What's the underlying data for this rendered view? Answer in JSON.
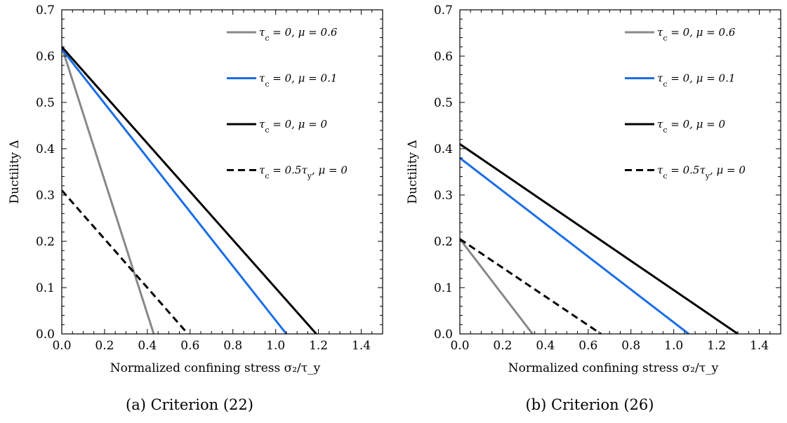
{
  "chart_data": [
    {
      "type": "line",
      "caption": "(a) Criterion (22)",
      "xlabel": "Normalized confining stress σ₂/τ_y",
      "ylabel": "Ductility Δ",
      "xlim": [
        0,
        1.5
      ],
      "ylim": [
        0,
        0.7
      ],
      "xticks": [
        "0.0",
        "0.2",
        "0.4",
        "0.6",
        "0.8",
        "1.0",
        "1.2",
        "1.4"
      ],
      "yticks": [
        "0.0",
        "0.1",
        "0.2",
        "0.3",
        "0.4",
        "0.5",
        "0.6",
        "0.7"
      ],
      "legend_position": "top-right",
      "series": [
        {
          "name": "τc = 0, μ = 0.6",
          "color": "#888888",
          "dash": "solid",
          "x": [
            0,
            0.43
          ],
          "y": [
            0.62,
            0
          ]
        },
        {
          "name": "τc = 0, μ = 0.1",
          "color": "#1a6ee6",
          "dash": "solid",
          "x": [
            0,
            1.05
          ],
          "y": [
            0.615,
            0
          ]
        },
        {
          "name": "τc = 0, μ = 0",
          "color": "#000000",
          "dash": "solid",
          "x": [
            0,
            1.19
          ],
          "y": [
            0.62,
            0
          ]
        },
        {
          "name": "τc = 0.5τy, μ = 0",
          "color": "#000000",
          "dash": "dashed",
          "x": [
            0,
            0.59
          ],
          "y": [
            0.31,
            0
          ]
        }
      ]
    },
    {
      "type": "line",
      "caption": "(b) Criterion (26)",
      "xlabel": "Normalized confining stress σ₂/τ_y",
      "ylabel": "Ductility Δ",
      "xlim": [
        0,
        1.5
      ],
      "ylim": [
        0,
        0.7
      ],
      "xticks": [
        "0.0",
        "0.2",
        "0.4",
        "0.6",
        "0.8",
        "1.0",
        "1.2",
        "1.4"
      ],
      "yticks": [
        "0.0",
        "0.1",
        "0.2",
        "0.3",
        "0.4",
        "0.5",
        "0.6",
        "0.7"
      ],
      "legend_position": "top-right",
      "series": [
        {
          "name": "τc = 0, μ = 0.6",
          "color": "#888888",
          "dash": "solid",
          "x": [
            0,
            0.34
          ],
          "y": [
            0.205,
            0
          ]
        },
        {
          "name": "τc = 0, μ = 0.1",
          "color": "#1a6ee6",
          "dash": "solid",
          "x": [
            0,
            1.07
          ],
          "y": [
            0.38,
            0
          ]
        },
        {
          "name": "τc = 0, μ = 0",
          "color": "#000000",
          "dash": "solid",
          "x": [
            0,
            1.3
          ],
          "y": [
            0.41,
            0
          ]
        },
        {
          "name": "τc = 0.5τy, μ = 0",
          "color": "#000000",
          "dash": "dashed",
          "x": [
            0,
            0.66
          ],
          "y": [
            0.205,
            0
          ]
        }
      ]
    }
  ]
}
